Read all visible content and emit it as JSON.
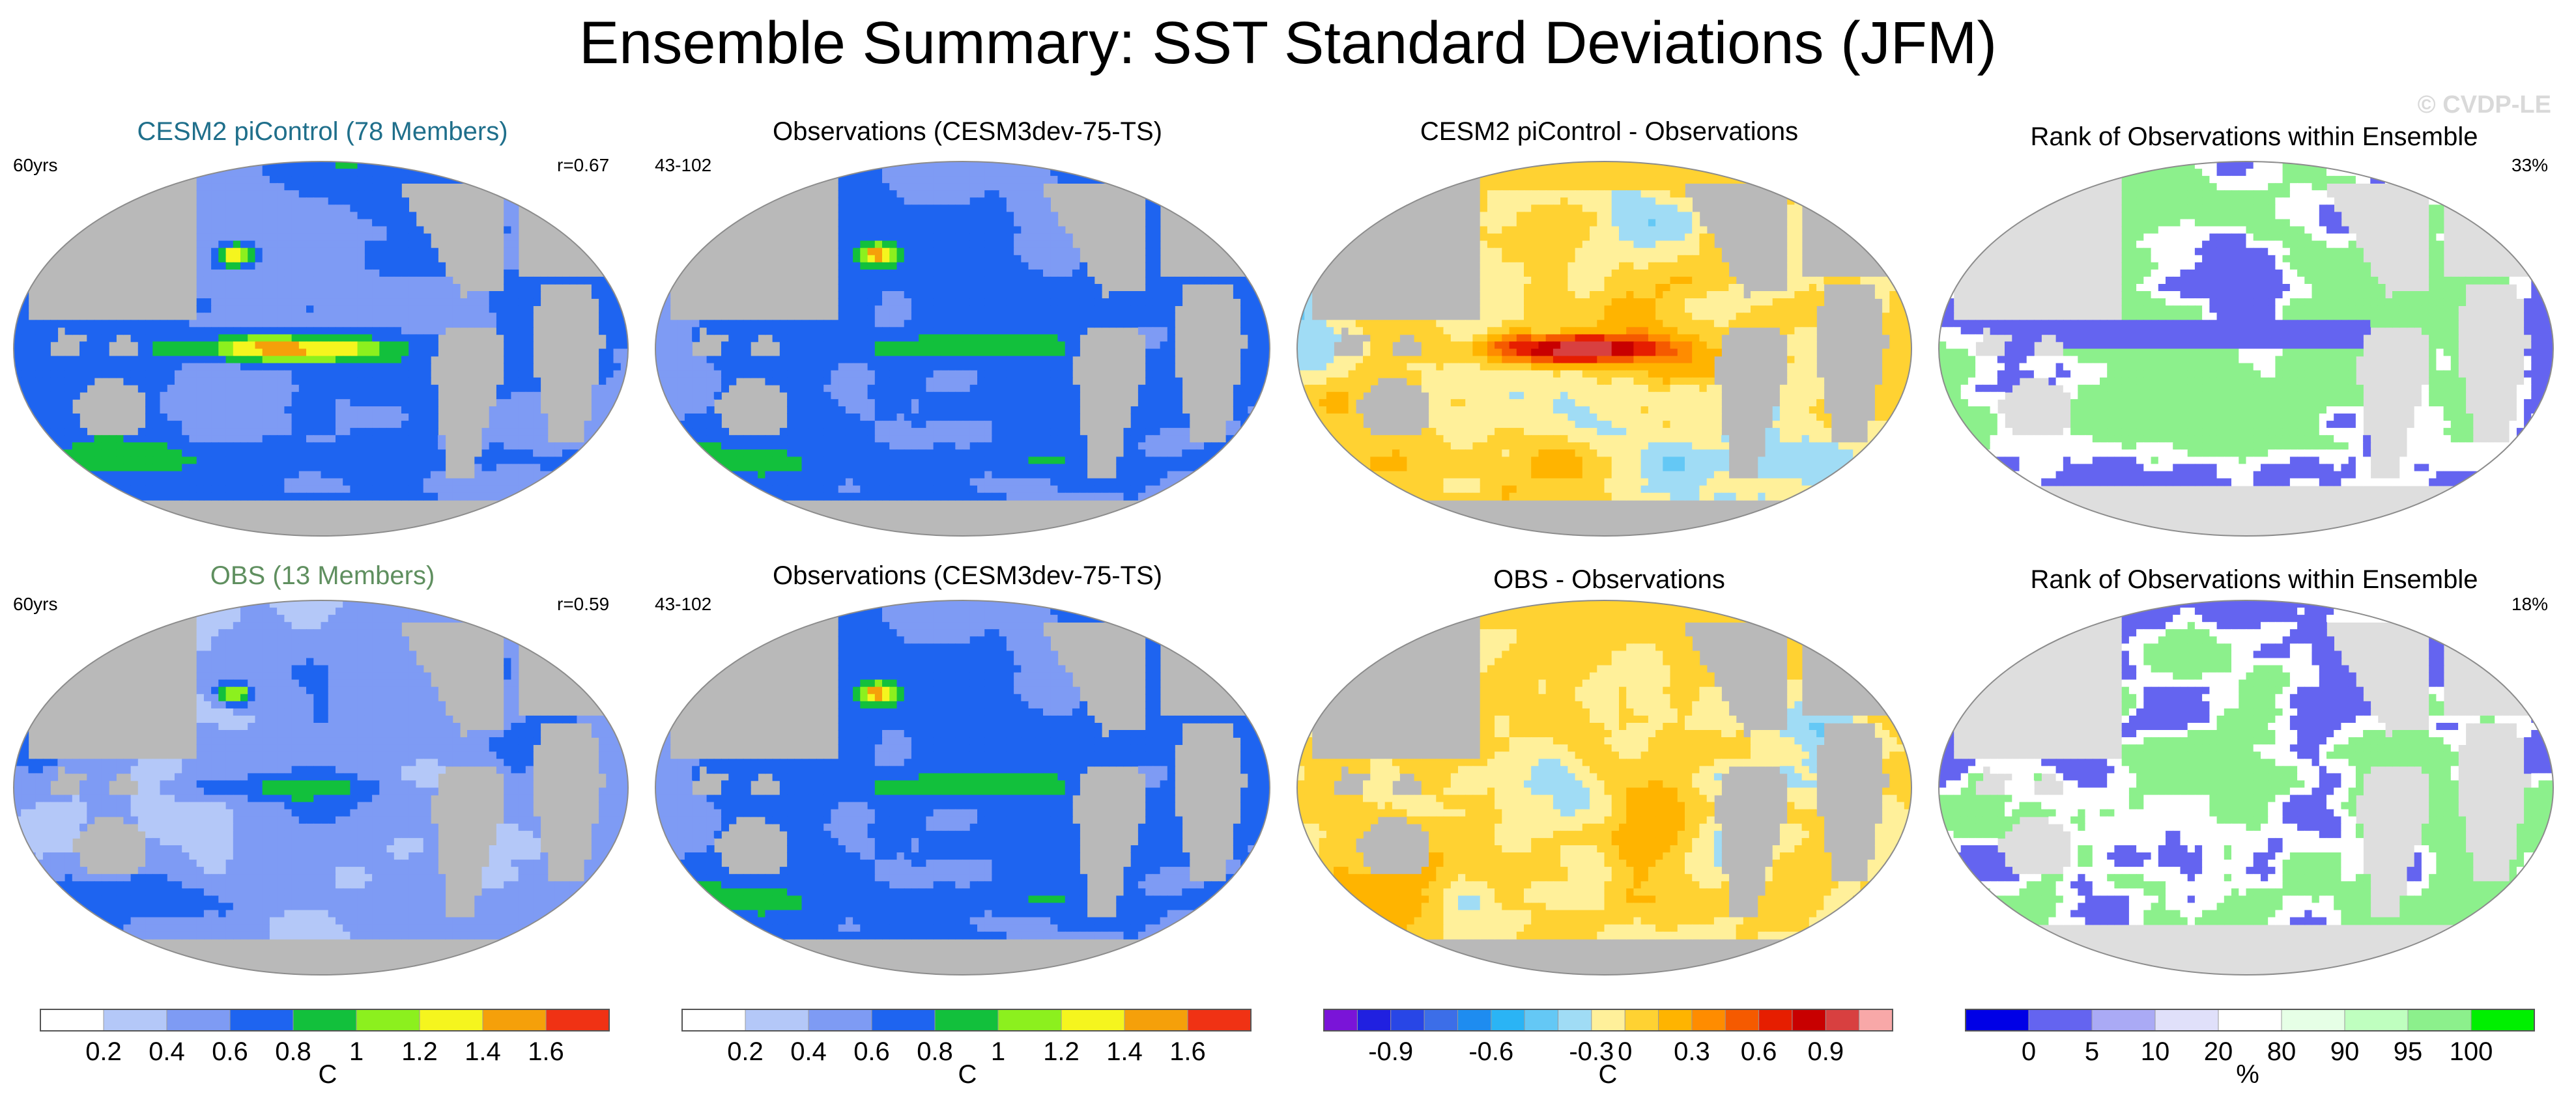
{
  "title": "Ensemble Summary: SST Standard Deviations (JFM)",
  "watermark": "© CVDP-LE",
  "colors": {
    "land": "#b9b9b9",
    "rank_land": "#dedede",
    "background": "#ffffff"
  },
  "chart_data": [
    {
      "type": "heatmap",
      "title": "CESM2 piControl (78 Members)",
      "title_color": "#1f6f8b",
      "left_label": "60yrs",
      "right_label": "r=0.67",
      "field": "model_std",
      "palette": "std"
    },
    {
      "type": "heatmap",
      "title": "Observations (CESM3dev-75-TS)",
      "title_color": "#000000",
      "left_label": "43-102",
      "right_label": "",
      "field": "obs_std",
      "palette": "std"
    },
    {
      "type": "heatmap",
      "title": "CESM2 piControl - Observations",
      "title_color": "#000000",
      "left_label": "",
      "right_label": "",
      "field": "model_minus_obs",
      "palette": "diff"
    },
    {
      "type": "heatmap",
      "title": "Rank of Observations within Ensemble",
      "title_color": "#000000",
      "left_label": "",
      "right_label": "33%",
      "field": "rank",
      "palette": "rank"
    },
    {
      "type": "heatmap",
      "title": "OBS (13 Members)",
      "title_color": "#5f8f5f",
      "left_label": "60yrs",
      "right_label": "r=0.59",
      "field": "obsens_std",
      "palette": "std"
    },
    {
      "type": "heatmap",
      "title": "Observations (CESM3dev-75-TS)",
      "title_color": "#000000",
      "left_label": "43-102",
      "right_label": "",
      "field": "obs_std",
      "palette": "std"
    },
    {
      "type": "heatmap",
      "title": "OBS - Observations",
      "title_color": "#000000",
      "left_label": "",
      "right_label": "",
      "field": "obsens_minus_obs",
      "palette": "diff"
    },
    {
      "type": "heatmap",
      "title": "Rank of Observations within Ensemble",
      "title_color": "#000000",
      "left_label": "",
      "right_label": "18%",
      "field": "rank",
      "palette": "rank"
    }
  ],
  "colorbars": [
    {
      "unit": "C",
      "colors": [
        "#ffffff",
        "#b4c8f8",
        "#7e9bf4",
        "#1e64f0",
        "#12c03c",
        "#8cf01e",
        "#f5f51e",
        "#f5a00a",
        "#f03214"
      ],
      "tick_labels": [
        "0.2",
        "0.4",
        "0.6",
        "0.8",
        "1",
        "1.2",
        "1.4",
        "1.6"
      ],
      "ticks_at_boundaries": true
    },
    {
      "unit": "C",
      "colors": [
        "#ffffff",
        "#b4c8f8",
        "#7e9bf4",
        "#1e64f0",
        "#12c03c",
        "#8cf01e",
        "#f5f51e",
        "#f5a00a",
        "#f03214"
      ],
      "tick_labels": [
        "0.2",
        "0.4",
        "0.6",
        "0.8",
        "1",
        "1.2",
        "1.4",
        "1.6"
      ],
      "ticks_at_boundaries": true
    },
    {
      "unit": "C",
      "colors": [
        "#7a14d8",
        "#2020e0",
        "#2846e6",
        "#3c6ee8",
        "#1e8cf0",
        "#2ab4f5",
        "#64c8f5",
        "#a0dcf5",
        "#fff09a",
        "#ffd232",
        "#ffb400",
        "#ff8c00",
        "#f55a00",
        "#e61e00",
        "#c80000",
        "#d84040",
        "#f8a8a8"
      ],
      "tick_labels": [
        "-0.9",
        "-0.6",
        "-0.3",
        "0",
        "0.3",
        "0.6",
        "0.9"
      ],
      "tick_positions": [
        2,
        5,
        8,
        9,
        11,
        13,
        15
      ]
    },
    {
      "unit": "%",
      "colors": [
        "#0000e6",
        "#6464f0",
        "#aaaaf5",
        "#e0e0fa",
        "#ffffff",
        "#e6ffe6",
        "#bfffbf",
        "#8cf08c",
        "#00f000"
      ],
      "tick_labels": [
        "0",
        "5",
        "10",
        "20",
        "80",
        "90",
        "95",
        "100"
      ],
      "ticks_at_boundaries": true
    }
  ]
}
